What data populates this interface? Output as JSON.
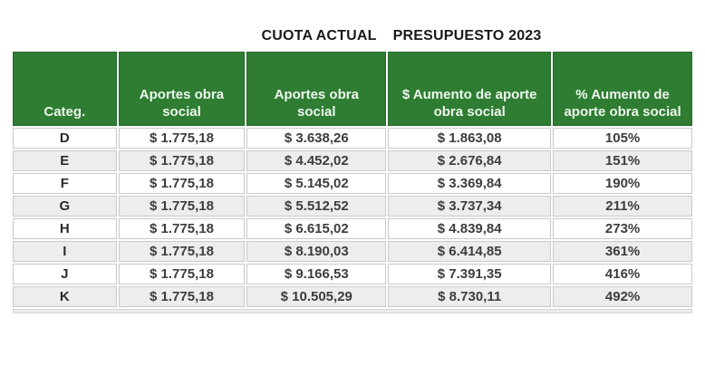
{
  "title": {
    "part1": "CUOTA ACTUAL",
    "part2": "PRESUPUESTO 2023"
  },
  "colors": {
    "header_green": "#2e7d32",
    "header_border": "#256b2a",
    "header_text": "#eef7ee",
    "stripe": "#ededed",
    "cell_border": "#c9c9c9",
    "data_text": "#3d3d3d",
    "title_text": "#1a1a1a"
  },
  "table": {
    "columns": [
      {
        "label": "Categ."
      },
      {
        "label": "Aportes obra social"
      },
      {
        "label": "Aportes obra social"
      },
      {
        "label": "$ Aumento de aporte obra social"
      },
      {
        "label": "% Aumento de aporte obra social"
      }
    ],
    "rows": [
      {
        "categ": "D",
        "aportes_actual": "$ 1.775,18",
        "aportes_presupuesto": "$ 3.638,26",
        "aumento_importe": "$ 1.863,08",
        "aumento_pct": "105%"
      },
      {
        "categ": "E",
        "aportes_actual": "$ 1.775,18",
        "aportes_presupuesto": "$ 4.452,02",
        "aumento_importe": "$ 2.676,84",
        "aumento_pct": "151%"
      },
      {
        "categ": "F",
        "aportes_actual": "$ 1.775,18",
        "aportes_presupuesto": "$ 5.145,02",
        "aumento_importe": "$ 3.369,84",
        "aumento_pct": "190%"
      },
      {
        "categ": "G",
        "aportes_actual": "$ 1.775,18",
        "aportes_presupuesto": "$ 5.512,52",
        "aumento_importe": "$ 3.737,34",
        "aumento_pct": "211%"
      },
      {
        "categ": "H",
        "aportes_actual": "$ 1.775,18",
        "aportes_presupuesto": "$ 6.615,02",
        "aumento_importe": "$ 4.839,84",
        "aumento_pct": "273%"
      },
      {
        "categ": "I",
        "aportes_actual": "$ 1.775,18",
        "aportes_presupuesto": "$ 8.190,03",
        "aumento_importe": "$ 6.414,85",
        "aumento_pct": "361%"
      },
      {
        "categ": "J",
        "aportes_actual": "$ 1.775,18",
        "aportes_presupuesto": "$ 9.166,53",
        "aumento_importe": "$ 7.391,35",
        "aumento_pct": "416%"
      },
      {
        "categ": "K",
        "aportes_actual": "$ 1.775,18",
        "aportes_presupuesto": "$ 10.505,29",
        "aumento_importe": "$ 8.730,11",
        "aumento_pct": "492%"
      }
    ]
  },
  "chart_data": {
    "type": "table",
    "title": "CUOTA ACTUAL / PRESUPUESTO 2023",
    "columns": [
      "Categ.",
      "Aportes obra social (cuota actual)",
      "Aportes obra social (presupuesto 2023)",
      "$ Aumento de aporte obra social",
      "% Aumento de aporte obra social"
    ],
    "categories": [
      "D",
      "E",
      "F",
      "G",
      "H",
      "I",
      "J",
      "K"
    ],
    "series": [
      {
        "name": "Aportes obra social (cuota actual)",
        "values": [
          1775.18,
          1775.18,
          1775.18,
          1775.18,
          1775.18,
          1775.18,
          1775.18,
          1775.18
        ]
      },
      {
        "name": "Aportes obra social (presupuesto 2023)",
        "values": [
          3638.26,
          4452.02,
          5145.02,
          5512.52,
          6615.02,
          8190.03,
          9166.53,
          10505.29
        ]
      },
      {
        "name": "$ Aumento de aporte obra social",
        "values": [
          1863.08,
          2676.84,
          3369.84,
          3737.34,
          4839.84,
          6414.85,
          7391.35,
          8730.11
        ]
      },
      {
        "name": "% Aumento de aporte obra social",
        "values": [
          105,
          151,
          190,
          211,
          273,
          361,
          416,
          492
        ]
      }
    ],
    "layout": {
      "header_fill": "#2e7d32",
      "row_striping": true,
      "number_format": "es-AR"
    }
  }
}
